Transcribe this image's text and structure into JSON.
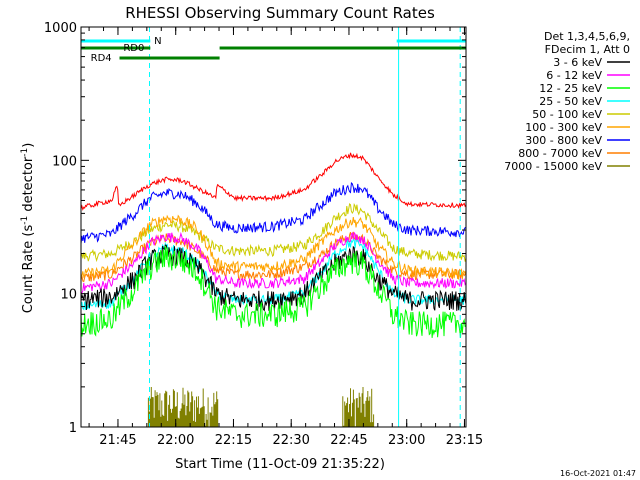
{
  "chart_data": {
    "type": "line",
    "title": "RHESSI Observing Summary Count Rates",
    "xlabel": "Start Time (11-Oct-09 21:35:22)",
    "ylabel": "Count Rate (s",
    "ylabel_sup1": "-1",
    "ylabel_mid": " detector",
    "ylabel_sup2": "-1",
    "ylabel_end": ")",
    "y_scale": "log",
    "ylim": [
      1,
      1000
    ],
    "xlim_minutes": [
      0,
      100
    ],
    "x_tick_labels": [
      {
        "t": 9.6,
        "label": "21:45"
      },
      {
        "t": 24.6,
        "label": "22:00"
      },
      {
        "t": 39.6,
        "label": "22:15"
      },
      {
        "t": 54.6,
        "label": "22:30"
      },
      {
        "t": 69.6,
        "label": "22:45"
      },
      {
        "t": 84.6,
        "label": "23:00"
      },
      {
        "t": 99.6,
        "label": "23:15"
      }
    ],
    "y_tick_labels": [
      {
        "v": 1,
        "label": "1"
      },
      {
        "v": 10,
        "label": "10"
      },
      {
        "v": 100,
        "label": "100"
      },
      {
        "v": 1000,
        "label": "1000"
      }
    ],
    "legend_header": [
      "Det 1,3,4,5,6,9,",
      "FDecim 1, Att 0"
    ],
    "series": [
      {
        "name": "3 - 6 keV",
        "color": "#000000",
        "points": [
          [
            0,
            9
          ],
          [
            8,
            9.5
          ],
          [
            14,
            13
          ],
          [
            18,
            18
          ],
          [
            22,
            20
          ],
          [
            26,
            19
          ],
          [
            30,
            16
          ],
          [
            35,
            10
          ],
          [
            40,
            9
          ],
          [
            50,
            9
          ],
          [
            58,
            10
          ],
          [
            63,
            14
          ],
          [
            66,
            17
          ],
          [
            70,
            20
          ],
          [
            73,
            19
          ],
          [
            77,
            13
          ],
          [
            81,
            10
          ],
          [
            85,
            9
          ],
          [
            100,
            9
          ]
        ]
      },
      {
        "name": "6 - 12 keV",
        "color": "#ff00ff",
        "points": [
          [
            0,
            11
          ],
          [
            8,
            12
          ],
          [
            14,
            17
          ],
          [
            18,
            24
          ],
          [
            22,
            27
          ],
          [
            26,
            26
          ],
          [
            30,
            22
          ],
          [
            35,
            13
          ],
          [
            40,
            12
          ],
          [
            50,
            12
          ],
          [
            58,
            13
          ],
          [
            63,
            18
          ],
          [
            66,
            23
          ],
          [
            70,
            27
          ],
          [
            73,
            26
          ],
          [
            77,
            18
          ],
          [
            81,
            13
          ],
          [
            85,
            12
          ],
          [
            100,
            12
          ]
        ]
      },
      {
        "name": "12 - 25 keV",
        "color": "#00ff00",
        "points": [
          [
            0,
            6
          ],
          [
            8,
            6.5
          ],
          [
            14,
            11
          ],
          [
            18,
            16
          ],
          [
            22,
            19
          ],
          [
            26,
            18
          ],
          [
            30,
            15
          ],
          [
            35,
            8
          ],
          [
            40,
            7
          ],
          [
            50,
            7
          ],
          [
            58,
            8
          ],
          [
            63,
            12
          ],
          [
            66,
            15
          ],
          [
            70,
            18
          ],
          [
            73,
            17
          ],
          [
            77,
            11
          ],
          [
            81,
            7
          ],
          [
            85,
            6
          ],
          [
            100,
            6
          ]
        ]
      },
      {
        "name": "25 - 50 keV",
        "color": "#00ffff",
        "points": [
          [
            0,
            8
          ],
          [
            8,
            8.5
          ],
          [
            14,
            13
          ],
          [
            18,
            19
          ],
          [
            22,
            22
          ],
          [
            26,
            21
          ],
          [
            30,
            17
          ],
          [
            35,
            10
          ],
          [
            40,
            9
          ],
          [
            50,
            9
          ],
          [
            58,
            10
          ],
          [
            63,
            15
          ],
          [
            66,
            20
          ],
          [
            70,
            24
          ],
          [
            73,
            23
          ],
          [
            77,
            15
          ],
          [
            81,
            10
          ],
          [
            85,
            9
          ],
          [
            100,
            9
          ]
        ]
      },
      {
        "name": "50 - 100 keV",
        "color": "#cccc00",
        "points": [
          [
            0,
            19
          ],
          [
            8,
            20
          ],
          [
            14,
            25
          ],
          [
            18,
            30
          ],
          [
            22,
            33
          ],
          [
            26,
            32
          ],
          [
            30,
            28
          ],
          [
            35,
            22
          ],
          [
            40,
            21
          ],
          [
            50,
            21
          ],
          [
            58,
            23
          ],
          [
            63,
            30
          ],
          [
            66,
            37
          ],
          [
            70,
            44
          ],
          [
            73,
            42
          ],
          [
            77,
            30
          ],
          [
            81,
            22
          ],
          [
            85,
            20
          ],
          [
            100,
            19
          ]
        ]
      },
      {
        "name": "100 - 300 keV",
        "color": "#ffa500",
        "points": [
          [
            0,
            14
          ],
          [
            8,
            15
          ],
          [
            14,
            24
          ],
          [
            18,
            33
          ],
          [
            22,
            37
          ],
          [
            26,
            36
          ],
          [
            30,
            31
          ],
          [
            35,
            17
          ],
          [
            40,
            16
          ],
          [
            50,
            16
          ],
          [
            58,
            18
          ],
          [
            63,
            25
          ],
          [
            66,
            30
          ],
          [
            70,
            35
          ],
          [
            73,
            34
          ],
          [
            77,
            23
          ],
          [
            81,
            17
          ],
          [
            85,
            15
          ],
          [
            100,
            14
          ]
        ]
      },
      {
        "name": "300 - 800 keV",
        "color": "#0000ff",
        "points": [
          [
            0,
            26
          ],
          [
            8,
            28
          ],
          [
            14,
            40
          ],
          [
            18,
            52
          ],
          [
            22,
            57
          ],
          [
            26,
            56
          ],
          [
            30,
            48
          ],
          [
            35,
            33
          ],
          [
            40,
            31
          ],
          [
            50,
            32
          ],
          [
            58,
            36
          ],
          [
            63,
            48
          ],
          [
            66,
            57
          ],
          [
            70,
            63
          ],
          [
            73,
            62
          ],
          [
            77,
            44
          ],
          [
            81,
            33
          ],
          [
            85,
            30
          ],
          [
            100,
            29
          ]
        ]
      },
      {
        "name": "800 - 7000 keV",
        "color": "#ff7f00",
        "points": [
          [
            0,
            13
          ],
          [
            8,
            14
          ],
          [
            14,
            19
          ],
          [
            18,
            24
          ],
          [
            22,
            26
          ],
          [
            26,
            25
          ],
          [
            30,
            21
          ],
          [
            35,
            15
          ],
          [
            40,
            14
          ],
          [
            50,
            14
          ],
          [
            58,
            16
          ],
          [
            63,
            20
          ],
          [
            66,
            24
          ],
          [
            70,
            27
          ],
          [
            73,
            26
          ],
          [
            77,
            19
          ],
          [
            81,
            15
          ],
          [
            85,
            14
          ],
          [
            100,
            14
          ]
        ]
      },
      {
        "name": "7000 - 15000 keV",
        "color": "#808000",
        "points": []
      }
    ],
    "red_trace": {
      "color": "#ff0000",
      "points": [
        [
          0,
          44
        ],
        [
          8,
          50
        ],
        [
          9.5,
          65
        ],
        [
          9.6,
          45
        ],
        [
          14,
          55
        ],
        [
          18,
          66
        ],
        [
          22,
          72
        ],
        [
          26,
          71
        ],
        [
          30,
          62
        ],
        [
          35,
          52
        ],
        [
          35.3,
          65
        ],
        [
          40,
          52
        ],
        [
          50,
          52
        ],
        [
          58,
          60
        ],
        [
          63,
          80
        ],
        [
          66,
          98
        ],
        [
          70,
          110
        ],
        [
          73,
          105
        ],
        [
          77,
          75
        ],
        [
          81,
          55
        ],
        [
          85,
          47
        ],
        [
          100,
          46
        ]
      ]
    },
    "flags": [
      {
        "label": "N",
        "color": "#00ffff",
        "segments": [
          [
            0,
            18
          ],
          [
            82,
            100
          ]
        ]
      },
      {
        "label": "RD0",
        "color": "#008000",
        "segments": [
          [
            0,
            18
          ],
          [
            36,
            100
          ]
        ]
      },
      {
        "label": "RD4",
        "color": "#008000",
        "segments": [
          [
            10,
            36
          ]
        ]
      }
    ],
    "markers": [
      {
        "t": 17.8,
        "style": "dashed",
        "color": "#00ffff"
      },
      {
        "t": 82.5,
        "style": "solid",
        "color": "#00ffff"
      },
      {
        "t": 98.5,
        "style": "dashed",
        "color": "#00ffff"
      }
    ],
    "olive_bursts": [
      [
        17.5,
        35.5
      ],
      [
        68,
        76
      ]
    ],
    "footer": "16-Oct-2021 01:47"
  }
}
